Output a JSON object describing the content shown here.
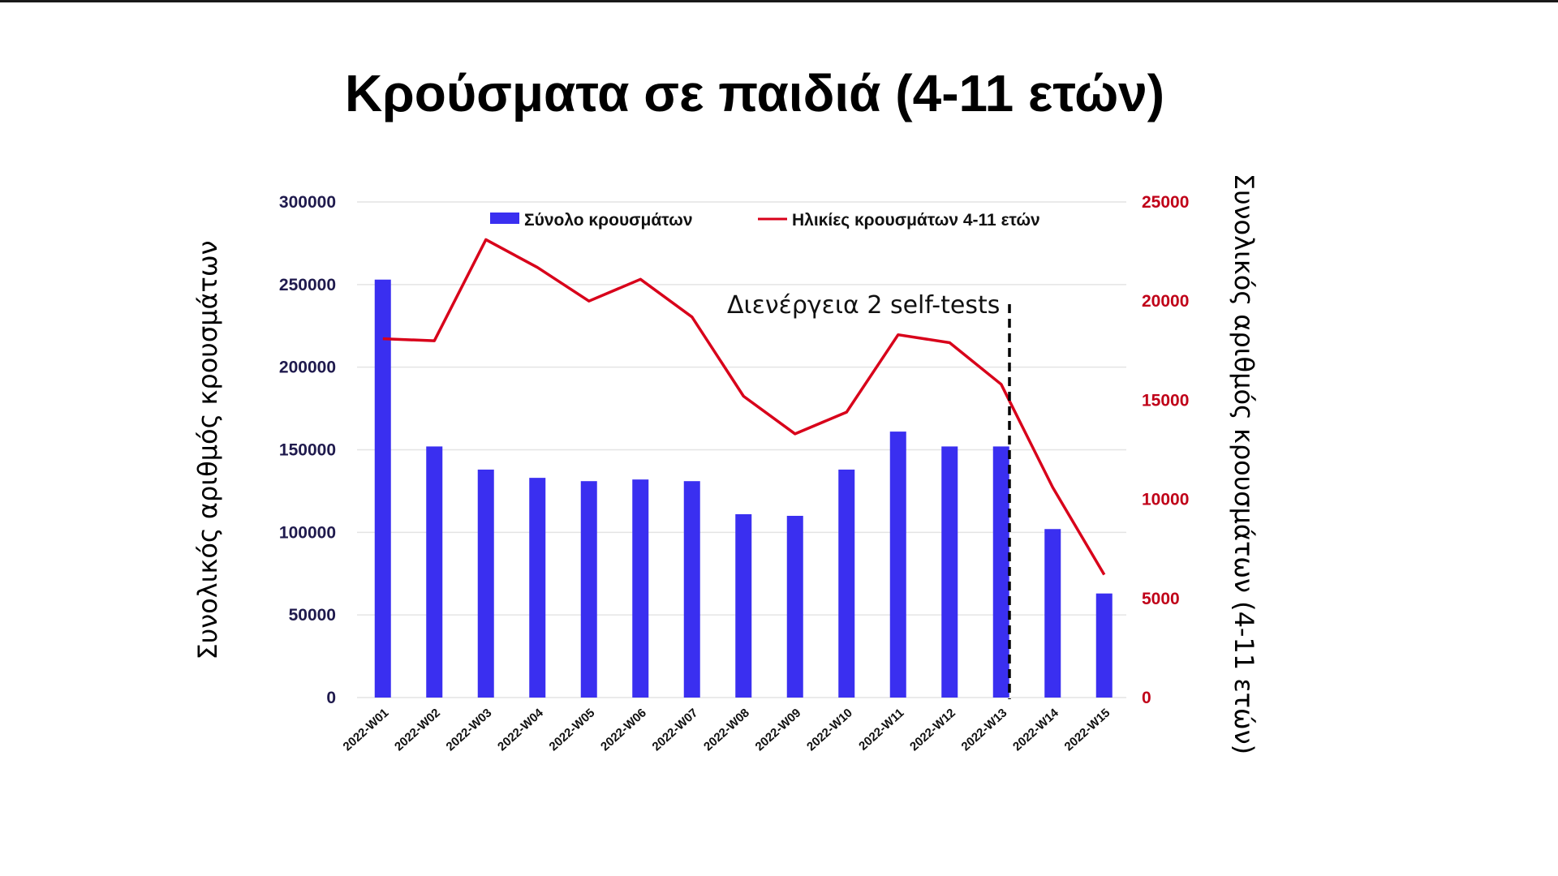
{
  "page": {
    "title": "Κρούσματα σε παιδιά (4-11 ετών)"
  },
  "colors": {
    "bar": "#3a2ff0",
    "line": "#d8001a",
    "grid": "#e4e4e4",
    "left_tick": "#1f1a4d",
    "right_tick": "#c00018"
  },
  "chart_data": {
    "type": "bar",
    "title": "Κρούσματα σε παιδιά (4-11 ετών)",
    "categories": [
      "2022-W01",
      "2022-W02",
      "2022-W03",
      "2022-W04",
      "2022-W05",
      "2022-W06",
      "2022-W07",
      "2022-W08",
      "2022-W09",
      "2022-W10",
      "2022-W11",
      "2022-W12",
      "2022-W13",
      "2022-W14",
      "2022-W15"
    ],
    "series": [
      {
        "name": "Σύνολο κρουσμάτων",
        "type": "bar",
        "axis": "left",
        "values": [
          253000,
          152000,
          138000,
          133000,
          131000,
          132000,
          131000,
          111000,
          110000,
          138000,
          161000,
          152000,
          152000,
          102000,
          63000
        ]
      },
      {
        "name": "Ηλικίες κρουσμάτων 4-11 ετών",
        "type": "line",
        "axis": "right",
        "values": [
          18100,
          18000,
          23100,
          21700,
          20000,
          21100,
          19200,
          15200,
          13300,
          14400,
          18300,
          17900,
          15800,
          10600,
          6200
        ]
      }
    ],
    "ylabel": "Συνολικός αριθμός κρουσμάτων",
    "ylabel_right": "Συνολικός αριθμός κρουσμάτων (4-11 ετών)",
    "ylim": [
      0,
      300000
    ],
    "ylim_right": [
      0,
      25000
    ],
    "yticks": [
      "0",
      "50000",
      "100000",
      "150000",
      "200000",
      "250000",
      "300000"
    ],
    "yticks_right": [
      "0",
      "5000",
      "10000",
      "15000",
      "20000",
      "25000"
    ],
    "grid": true,
    "legend_position": "top",
    "annotation": {
      "text": "Διενέργεια 2 self-tests",
      "marker": "dashed vertical line between 2022-W13 and 2022-W14"
    }
  }
}
